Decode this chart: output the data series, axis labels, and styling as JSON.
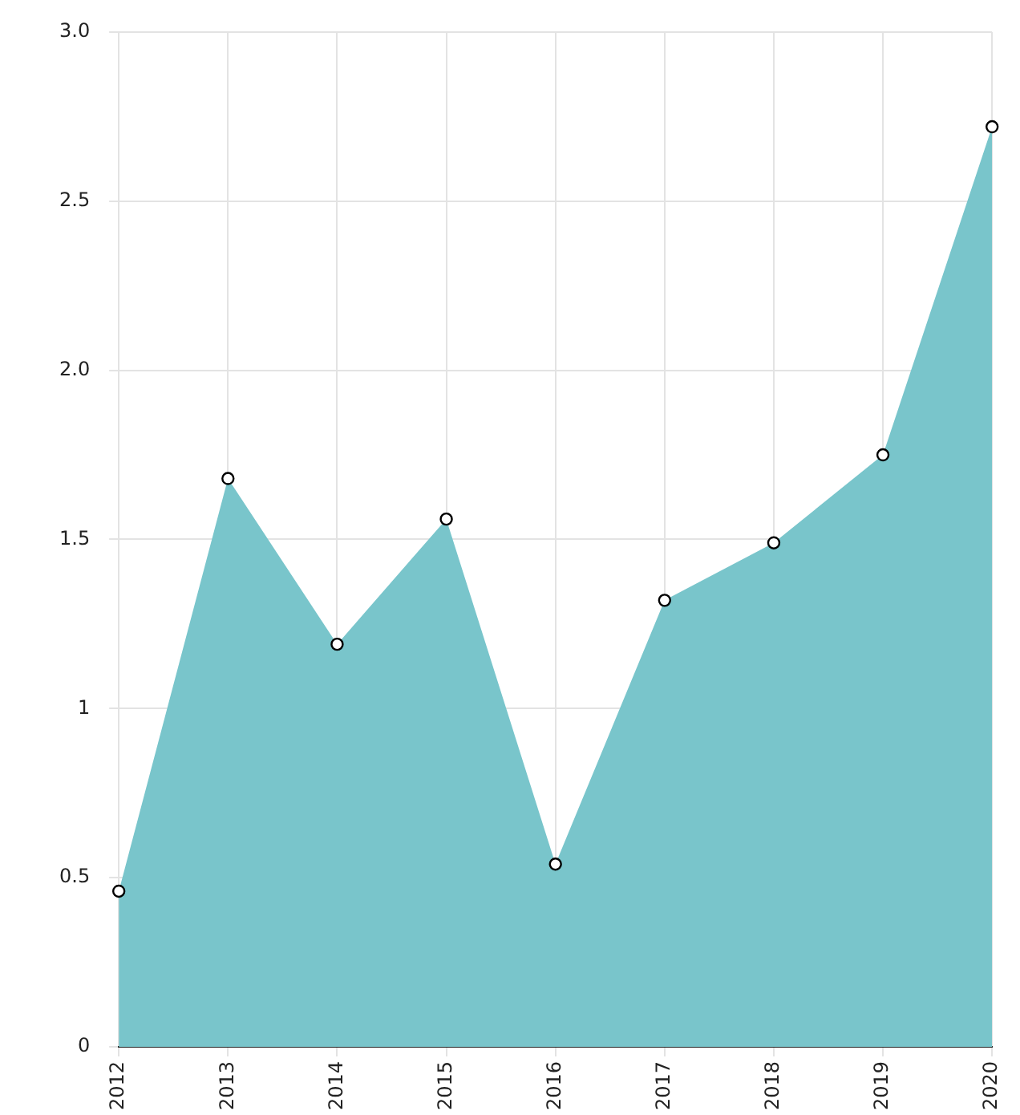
{
  "chart_data": {
    "type": "area",
    "categories": [
      "2012",
      "2013",
      "2014",
      "2015",
      "2016",
      "2017",
      "2018",
      "2019",
      "2020"
    ],
    "series": [
      {
        "color": "#79c5cb",
        "values": [
          0.46,
          1.68,
          1.19,
          1.56,
          0.54,
          1.32,
          1.49,
          1.75,
          2.72
        ]
      }
    ],
    "ylim": [
      0,
      3.0
    ],
    "yticks": [
      0,
      0.5,
      1,
      1.5,
      {
        "value": 2,
        "label": "2.0"
      },
      2.5,
      {
        "value": 3,
        "label": "3.0"
      }
    ],
    "grid": true,
    "legend": false,
    "marker": "circle"
  }
}
